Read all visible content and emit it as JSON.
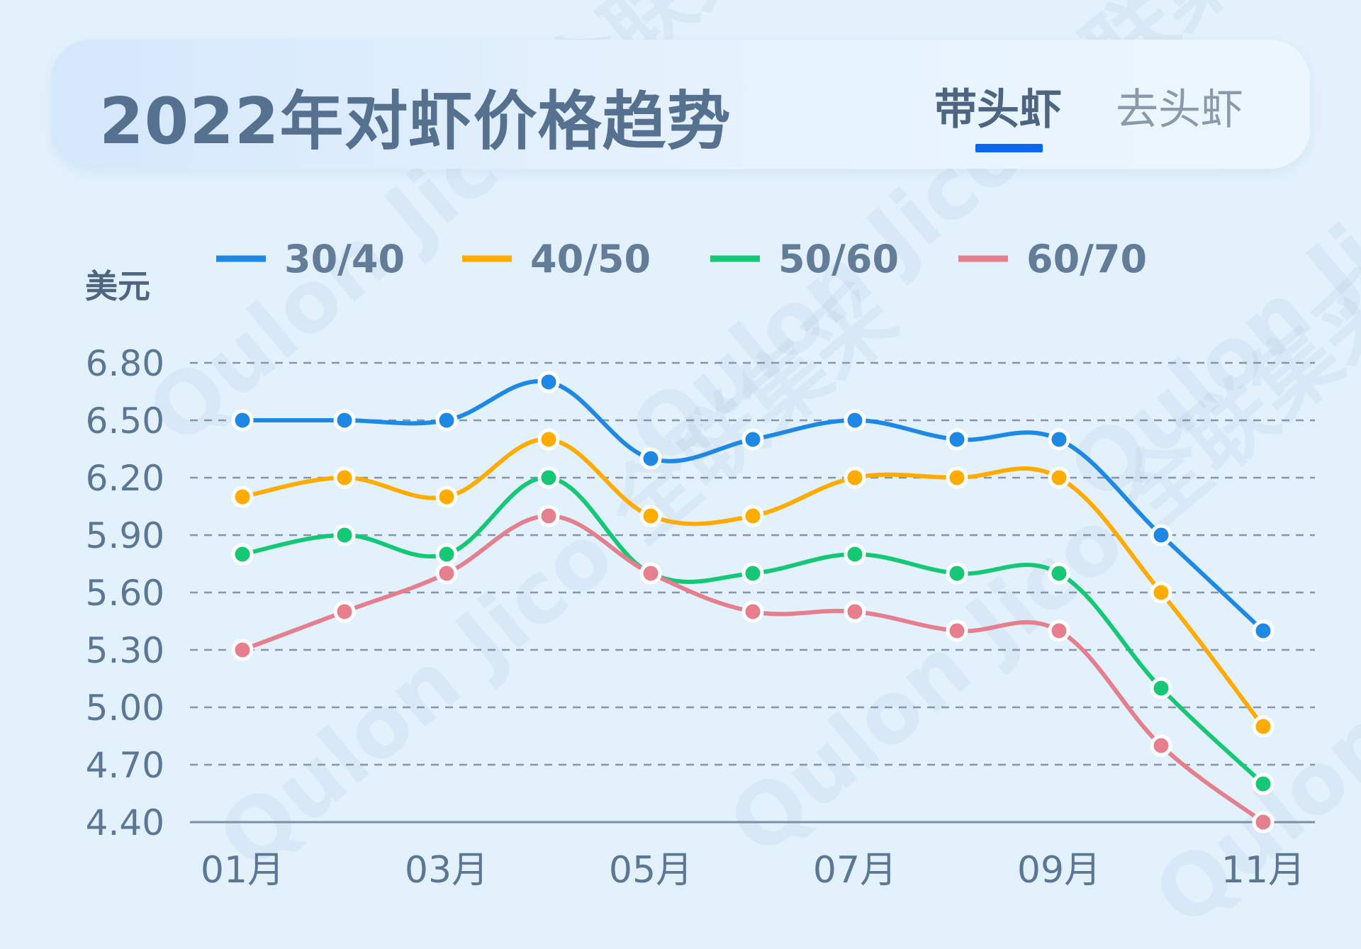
{
  "header": {
    "title": "2022年对虾价格趋势",
    "tabs": [
      {
        "label": "带头虾",
        "active": true
      },
      {
        "label": "去头虾",
        "active": false
      }
    ],
    "accent_color": "#0d66f0"
  },
  "watermark": "Qulon Jico 全联集采",
  "chart_data": {
    "type": "line",
    "title": "2022年对虾价格趋势",
    "ylabel": "美元",
    "xlabel": "",
    "categories": [
      "01月",
      "02月",
      "03月",
      "04月",
      "05月",
      "06月",
      "07月",
      "08月",
      "09月",
      "10月",
      "11月"
    ],
    "x_tick_labels": [
      "01月",
      "03月",
      "05月",
      "07月",
      "09月",
      "11月"
    ],
    "y_ticks": [
      "6.80",
      "6.50",
      "6.20",
      "5.90",
      "5.60",
      "5.30",
      "5.00",
      "4.70",
      "4.40"
    ],
    "ylim": [
      4.4,
      6.8
    ],
    "grid": true,
    "legend_position": "top",
    "series": [
      {
        "name": "30/40",
        "color": "#1e88e5",
        "values": [
          6.5,
          6.5,
          6.5,
          6.7,
          6.3,
          6.4,
          6.5,
          6.4,
          6.4,
          5.9,
          5.4
        ]
      },
      {
        "name": "40/50",
        "color": "#ffab00",
        "values": [
          6.1,
          6.2,
          6.1,
          6.4,
          6.0,
          6.0,
          6.2,
          6.2,
          6.2,
          5.6,
          4.9
        ]
      },
      {
        "name": "50/60",
        "color": "#16c876",
        "values": [
          5.8,
          5.9,
          5.8,
          6.2,
          5.7,
          5.7,
          5.8,
          5.7,
          5.7,
          5.1,
          4.6
        ]
      },
      {
        "name": "60/70",
        "color": "#e57f8d",
        "values": [
          5.3,
          5.5,
          5.7,
          6.0,
          5.7,
          5.5,
          5.5,
          5.4,
          5.4,
          4.8,
          4.4
        ]
      }
    ]
  }
}
